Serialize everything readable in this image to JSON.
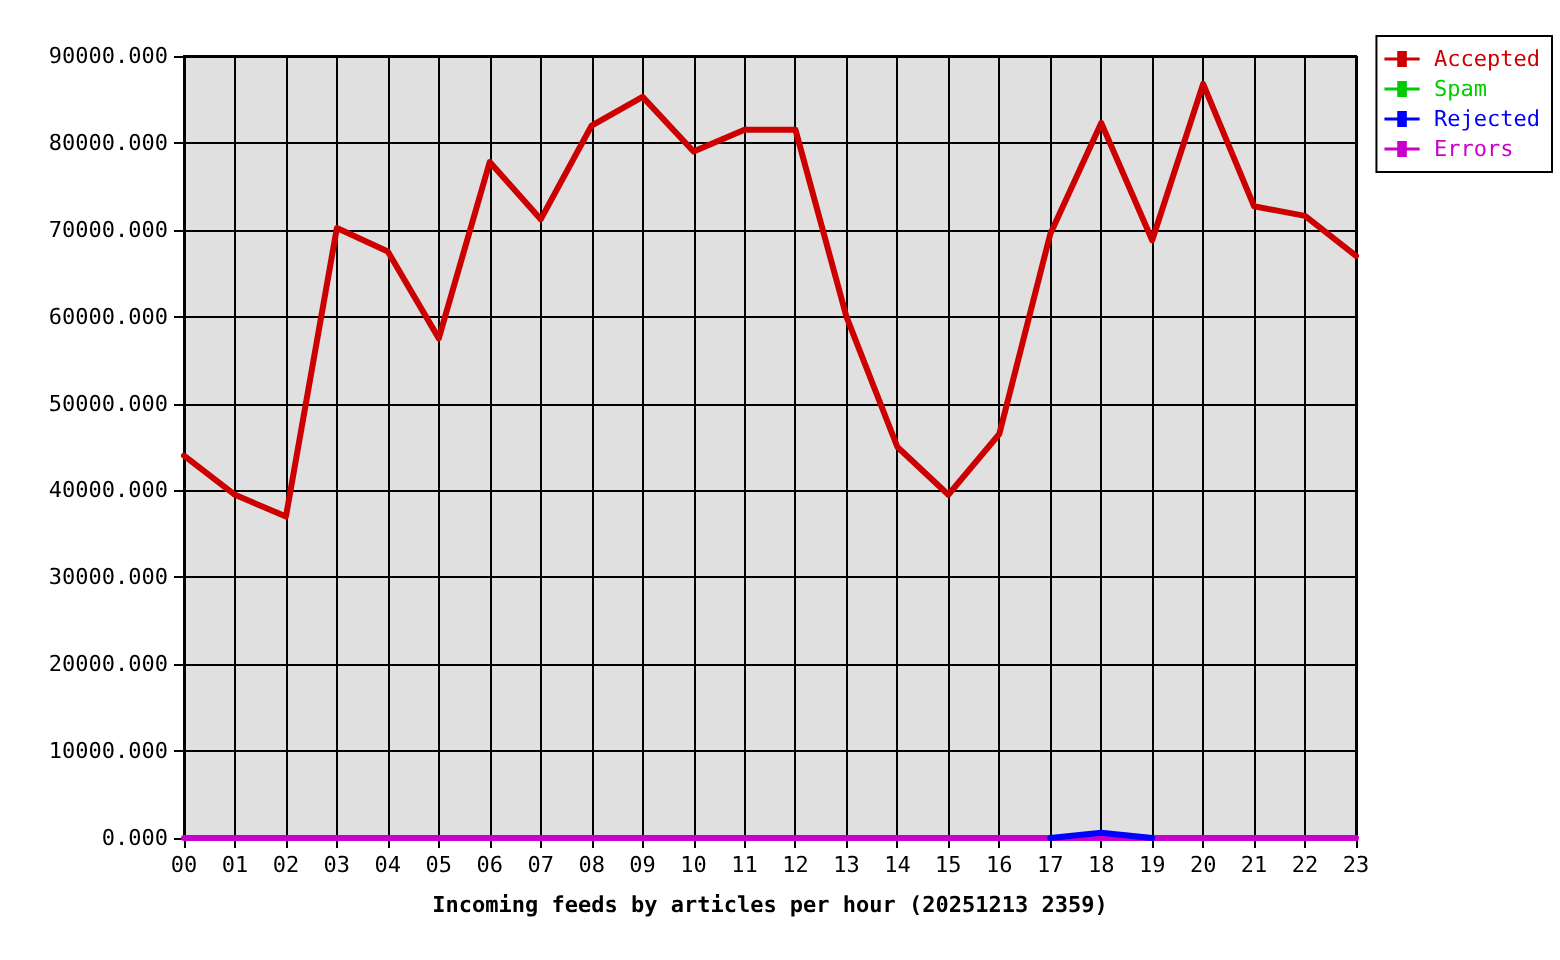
{
  "chart_data": {
    "type": "line",
    "xlabel": "Incoming feeds by articles per hour (20251213 2359)",
    "categories": [
      "00",
      "01",
      "02",
      "03",
      "04",
      "05",
      "06",
      "07",
      "08",
      "09",
      "10",
      "11",
      "12",
      "13",
      "14",
      "15",
      "16",
      "17",
      "18",
      "19",
      "20",
      "21",
      "22",
      "23"
    ],
    "series": [
      {
        "name": "Accepted",
        "color": "#cc0000",
        "values": [
          44000,
          39500,
          37000,
          70200,
          67500,
          57500,
          77800,
          71200,
          82000,
          85300,
          79000,
          81500,
          81500,
          60000,
          45000,
          39500,
          46500,
          69500,
          82300,
          68800,
          86800,
          72700,
          71600,
          67000
        ]
      },
      {
        "name": "Spam",
        "color": "#00cc00",
        "values": [
          null,
          null,
          null,
          null,
          null,
          null,
          null,
          null,
          null,
          null,
          null,
          null,
          null,
          null,
          null,
          null,
          null,
          null,
          null,
          null,
          null,
          null,
          null,
          null
        ]
      },
      {
        "name": "Rejected",
        "color": "#0000ff",
        "values": [
          null,
          null,
          null,
          null,
          null,
          null,
          null,
          null,
          null,
          null,
          null,
          null,
          null,
          null,
          null,
          null,
          null,
          0,
          600,
          0,
          null,
          null,
          null,
          null
        ]
      },
      {
        "name": "Errors",
        "color": "#cc00cc",
        "values": [
          0,
          0,
          0,
          0,
          0,
          0,
          0,
          0,
          0,
          0,
          0,
          0,
          0,
          0,
          0,
          0,
          0,
          0,
          0,
          0,
          0,
          0,
          0,
          0
        ]
      }
    ],
    "ylim": [
      0,
      90000
    ],
    "yticks": [
      {
        "value": 0,
        "label": "0.000"
      },
      {
        "value": 10000,
        "label": "10000.000"
      },
      {
        "value": 20000,
        "label": "20000.000"
      },
      {
        "value": 30000,
        "label": "30000.000"
      },
      {
        "value": 40000,
        "label": "40000.000"
      },
      {
        "value": 50000,
        "label": "50000.000"
      },
      {
        "value": 60000,
        "label": "60000.000"
      },
      {
        "value": 70000,
        "label": "70000.000"
      },
      {
        "value": 80000,
        "label": "80000.000"
      },
      {
        "value": 90000,
        "label": "90000.000"
      }
    ],
    "grid": true,
    "legend": "top right",
    "marker": "none",
    "line_style": "solid"
  }
}
